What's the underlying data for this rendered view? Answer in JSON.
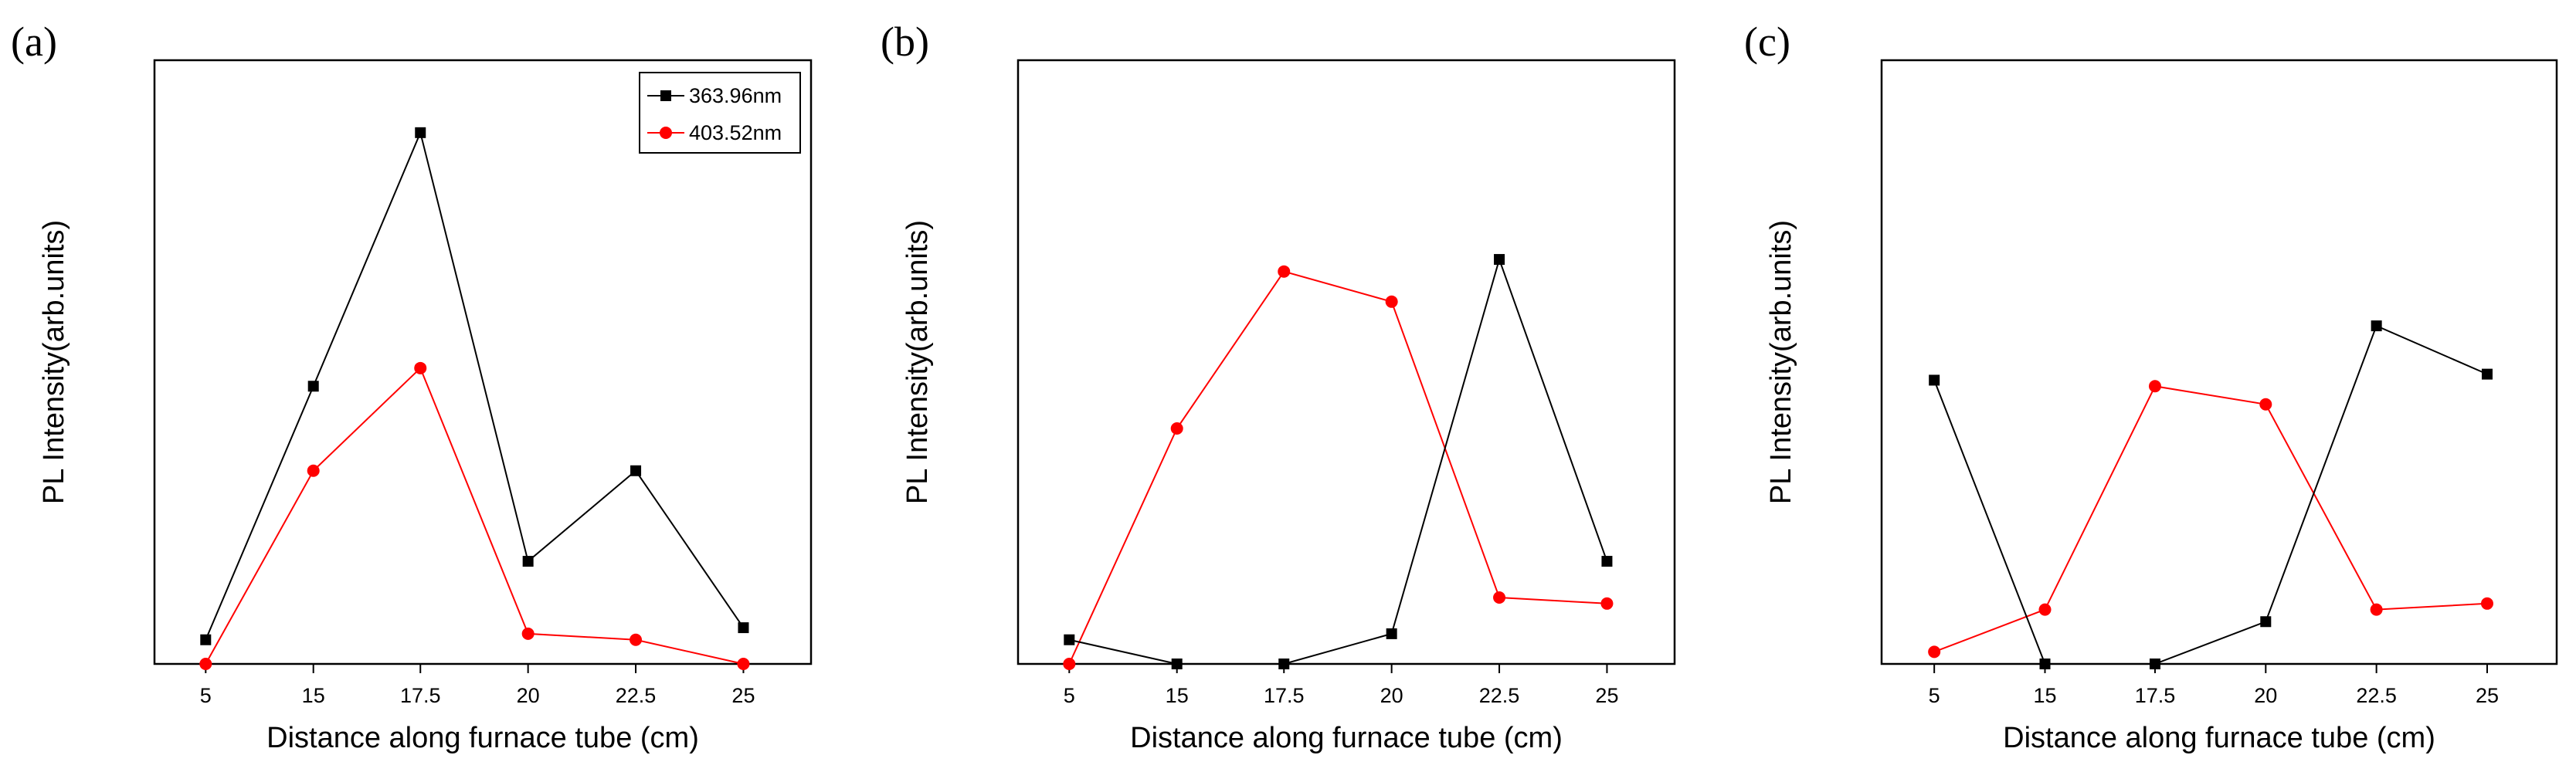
{
  "chart_data": [
    {
      "panel_label": "(a)",
      "type": "line",
      "xlabel": "Distance along furnace tube (cm)",
      "ylabel": "PL Intensity(arb.units)",
      "categories": [
        "5",
        "15",
        "17.5",
        "20",
        "22.5",
        "25"
      ],
      "ylim": [
        0,
        100
      ],
      "yticks_shown": false,
      "legend": "top-right",
      "series": [
        {
          "name": "363.96nm",
          "color": "#000000",
          "marker": "square",
          "values": [
            4,
            46,
            88,
            17,
            32,
            6
          ]
        },
        {
          "name": "403.52nm",
          "color": "#ff0000",
          "marker": "circle",
          "values": [
            0,
            32,
            49,
            5,
            4,
            0
          ]
        }
      ]
    },
    {
      "panel_label": "(b)",
      "type": "line",
      "xlabel": "Distance along furnace tube (cm)",
      "ylabel": "PL Intensity(arb.units)",
      "categories": [
        "5",
        "15",
        "17.5",
        "20",
        "22.5",
        "25"
      ],
      "ylim": [
        0,
        100
      ],
      "yticks_shown": false,
      "series": [
        {
          "name": "363.96nm",
          "color": "#000000",
          "marker": "square",
          "values": [
            4,
            0,
            0,
            5,
            67,
            17
          ]
        },
        {
          "name": "403.52nm",
          "color": "#ff0000",
          "marker": "circle",
          "values": [
            0,
            39,
            65,
            60,
            11,
            10
          ]
        }
      ]
    },
    {
      "panel_label": "(c)",
      "type": "line",
      "xlabel": "Distance along furnace tube (cm)",
      "ylabel": "PL Intensity(arb.units)",
      "categories": [
        "5",
        "15",
        "17.5",
        "20",
        "22.5",
        "25"
      ],
      "ylim": [
        0,
        100
      ],
      "yticks_shown": false,
      "series": [
        {
          "name": "363.96nm",
          "color": "#000000",
          "marker": "square",
          "values": [
            47,
            0,
            0,
            7,
            56,
            48
          ]
        },
        {
          "name": "403.52nm",
          "color": "#ff0000",
          "marker": "circle",
          "values": [
            2,
            9,
            46,
            43,
            9,
            10
          ]
        }
      ]
    }
  ]
}
